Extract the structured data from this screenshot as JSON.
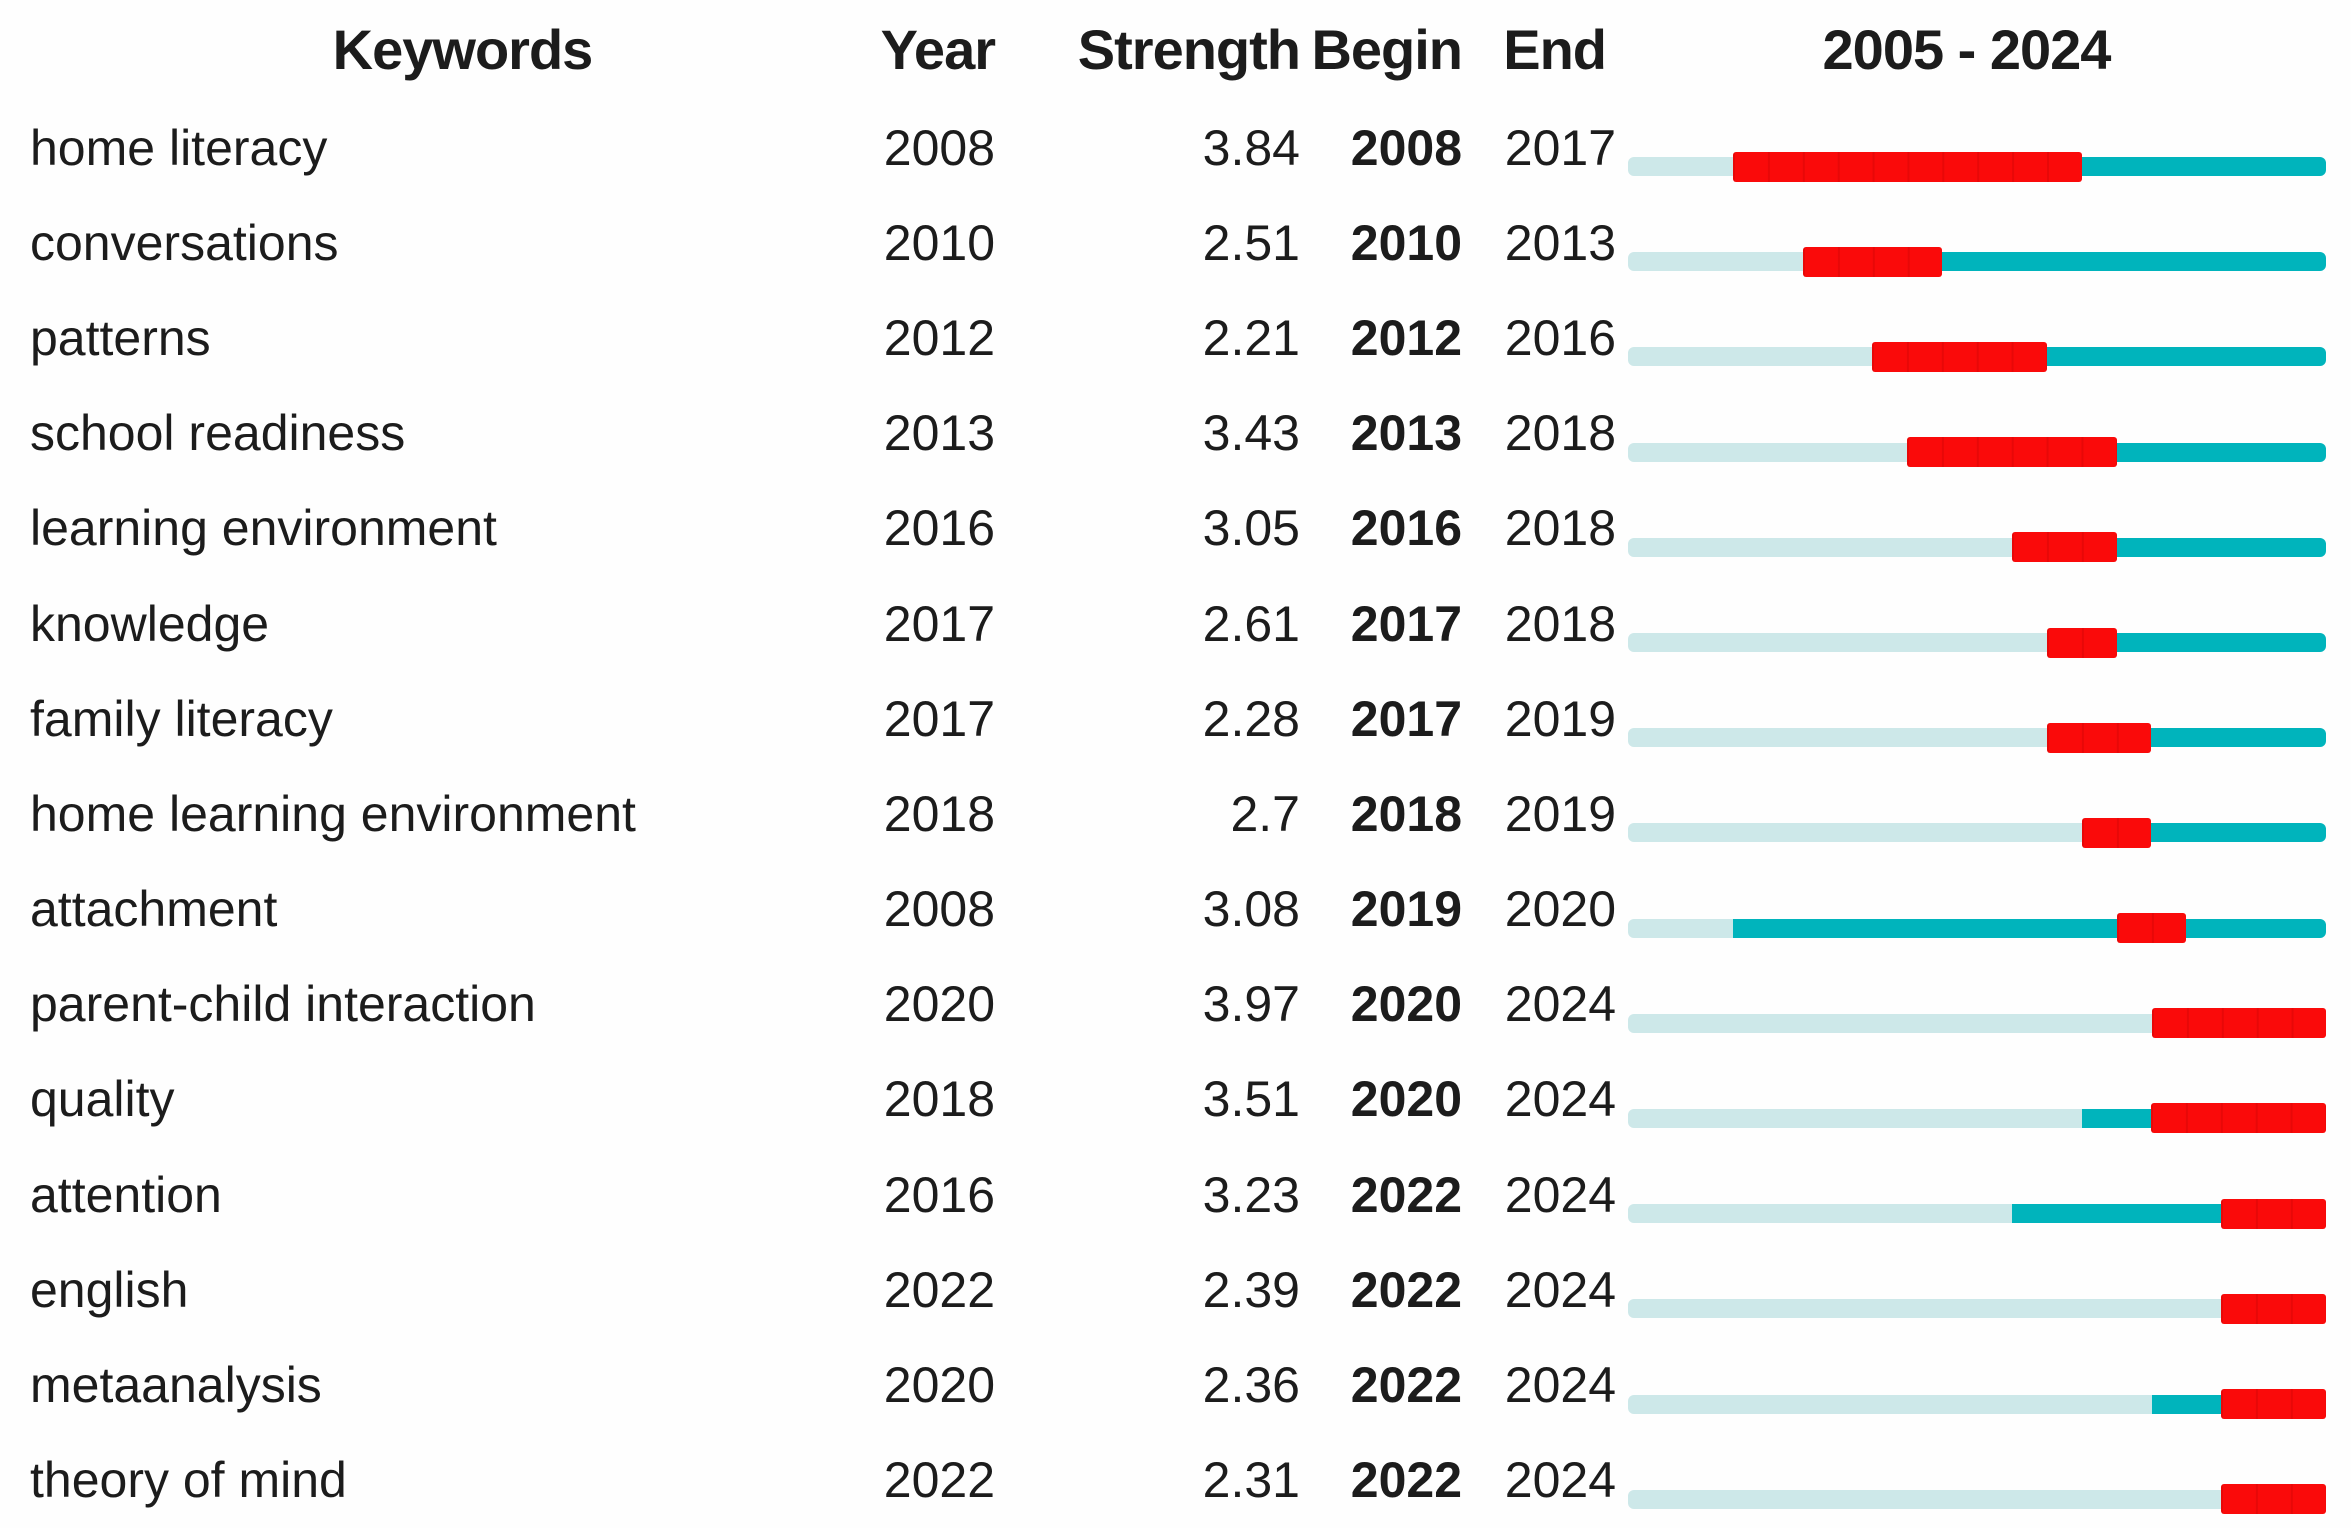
{
  "colors": {
    "burst": "#fa0a0a",
    "active": "#00b4bc",
    "inactive": "#cde8e9",
    "text": "#1c1c1c"
  },
  "chart_data": {
    "type": "table",
    "description_of_marks": "keyword citation-burst table; per-row timeline bar: pale segment = years before keyword appears, teal segment = active non-burst years, red segment = burst interval",
    "columns": [
      "Keywords",
      "Year",
      "Strength",
      "Begin",
      "End",
      "2005 - 2024"
    ],
    "timeline_range": [
      2005,
      2024
    ],
    "legend": {
      "burst_color": "#fa0a0a",
      "active_color": "#00b4bc",
      "inactive_color": "#cde8e9"
    },
    "rows": [
      {
        "keyword": "home literacy",
        "year": 2008,
        "strength": "3.84",
        "begin": 2008,
        "end": 2017
      },
      {
        "keyword": "conversations",
        "year": 2010,
        "strength": "2.51",
        "begin": 2010,
        "end": 2013
      },
      {
        "keyword": "patterns",
        "year": 2012,
        "strength": "2.21",
        "begin": 2012,
        "end": 2016
      },
      {
        "keyword": "school readiness",
        "year": 2013,
        "strength": "3.43",
        "begin": 2013,
        "end": 2018
      },
      {
        "keyword": "learning environment",
        "year": 2016,
        "strength": "3.05",
        "begin": 2016,
        "end": 2018
      },
      {
        "keyword": "knowledge",
        "year": 2017,
        "strength": "2.61",
        "begin": 2017,
        "end": 2018
      },
      {
        "keyword": "family literacy",
        "year": 2017,
        "strength": "2.28",
        "begin": 2017,
        "end": 2019
      },
      {
        "keyword": "home learning environment",
        "year": 2018,
        "strength": "2.7",
        "begin": 2018,
        "end": 2019
      },
      {
        "keyword": "attachment",
        "year": 2008,
        "strength": "3.08",
        "begin": 2019,
        "end": 2020
      },
      {
        "keyword": "parent-child interaction",
        "year": 2020,
        "strength": "3.97",
        "begin": 2020,
        "end": 2024
      },
      {
        "keyword": "quality",
        "year": 2018,
        "strength": "3.51",
        "begin": 2020,
        "end": 2024
      },
      {
        "keyword": "attention",
        "year": 2016,
        "strength": "3.23",
        "begin": 2022,
        "end": 2024
      },
      {
        "keyword": "english",
        "year": 2022,
        "strength": "2.39",
        "begin": 2022,
        "end": 2024
      },
      {
        "keyword": "metaanalysis",
        "year": 2020,
        "strength": "2.36",
        "begin": 2022,
        "end": 2024
      },
      {
        "keyword": "theory of mind",
        "year": 2022,
        "strength": "2.31",
        "begin": 2022,
        "end": 2024
      }
    ]
  }
}
